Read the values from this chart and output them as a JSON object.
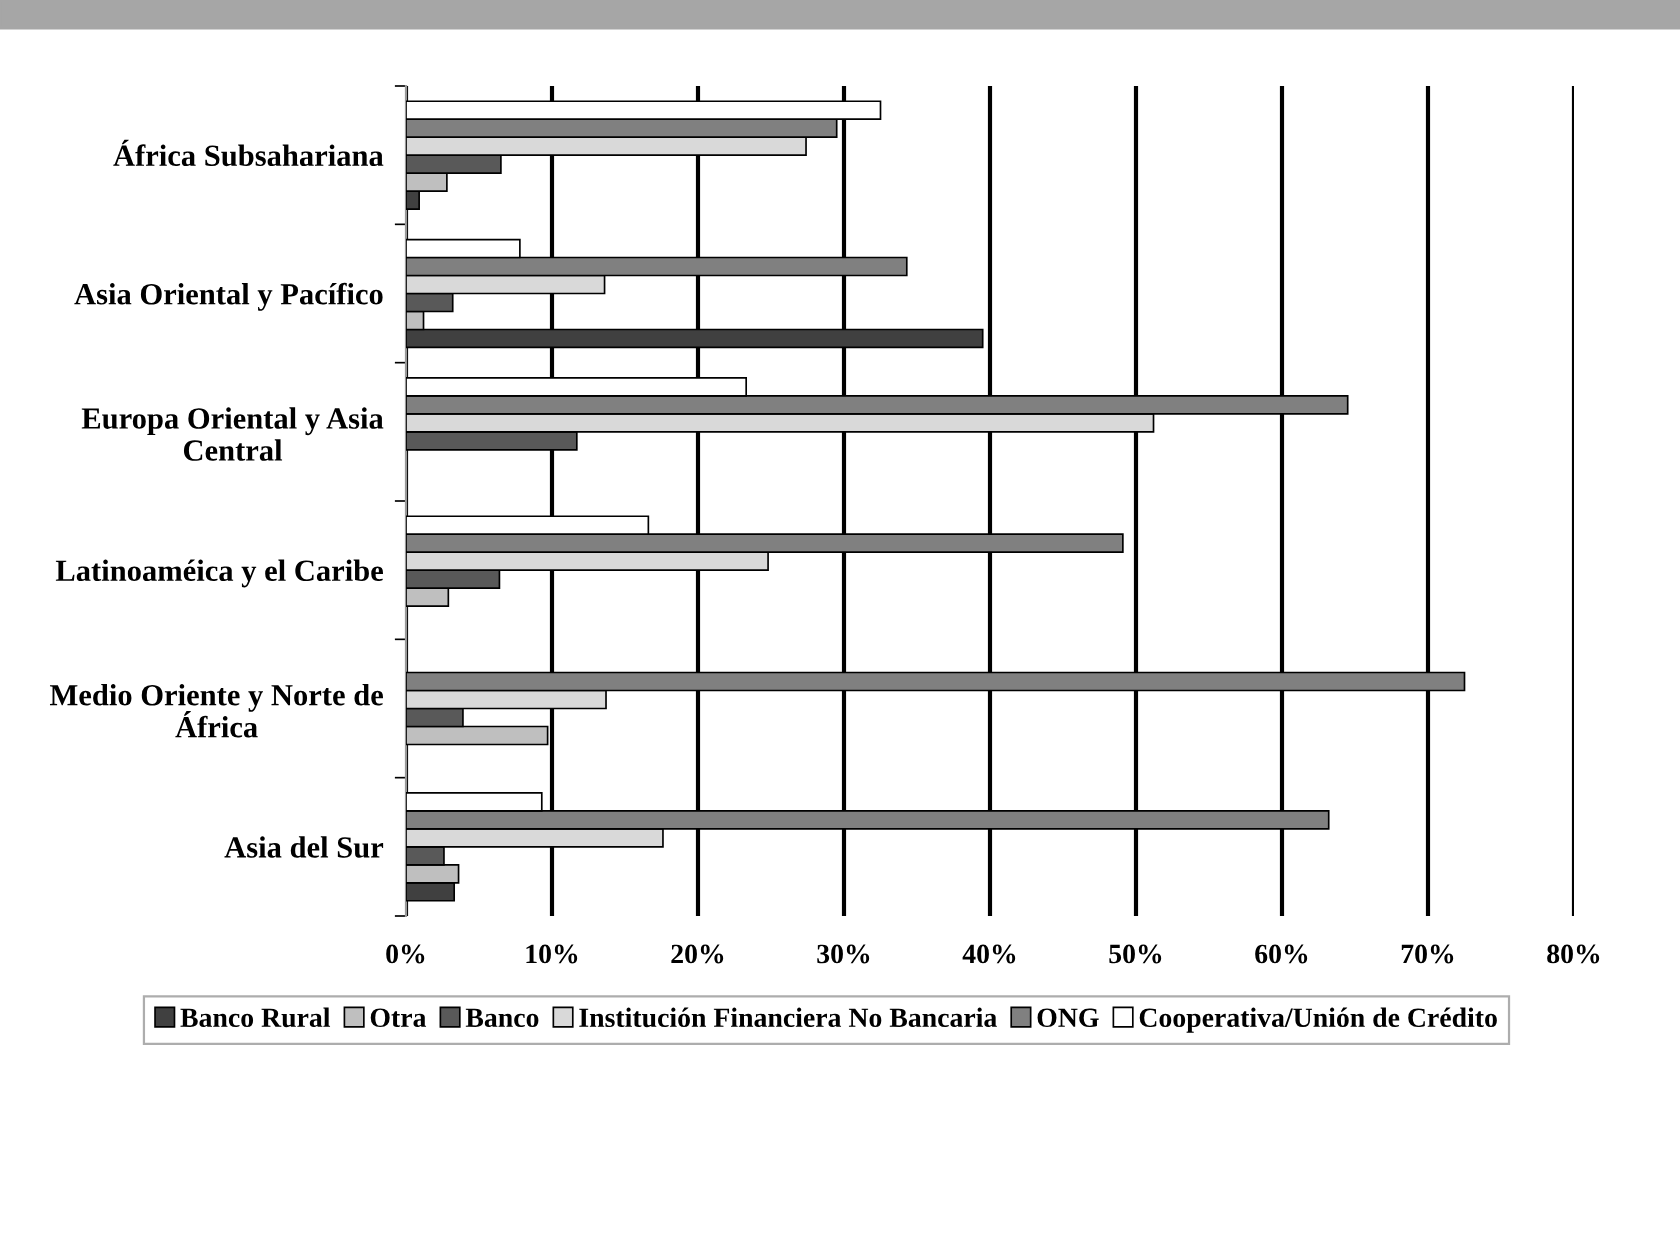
{
  "chart_data": {
    "type": "bar",
    "orientation": "horizontal",
    "categories": [
      "África Subsahariana",
      "Asia Oriental y Pacífico",
      "Europa Oriental y Asia Central",
      "Latinoaméica y el Caribe",
      "Medio Oriente y Norte de África",
      "Asia del Sur"
    ],
    "series": [
      {
        "name": "Banco Rural",
        "color": "#404040",
        "values": [
          0.9,
          39.5,
          null,
          null,
          null,
          3.3
        ]
      },
      {
        "name": "Otra",
        "color": "#bfbfbf",
        "values": [
          2.8,
          1.2,
          null,
          2.9,
          9.7,
          3.6
        ]
      },
      {
        "name": "Banco",
        "color": "#595959",
        "values": [
          6.5,
          3.2,
          11.7,
          6.4,
          3.9,
          2.6
        ]
      },
      {
        "name": "Institución Financiera No Bancaria",
        "color": "#d9d9d9",
        "values": [
          27.4,
          13.6,
          51.2,
          24.8,
          13.7,
          17.6
        ]
      },
      {
        "name": "ONG",
        "color": "#808080",
        "values": [
          29.5,
          34.3,
          64.5,
          49.1,
          72.5,
          63.2
        ]
      },
      {
        "name": "Cooperativa/Unión de Crédito",
        "color": "#ffffff",
        "values": [
          32.5,
          7.8,
          23.3,
          16.6,
          null,
          9.3
        ]
      }
    ],
    "xlim": [
      0,
      80
    ],
    "xticks": [
      {
        "value": 0,
        "label": "0%"
      },
      {
        "value": 10,
        "label": "10%"
      },
      {
        "value": 20,
        "label": "20%"
      },
      {
        "value": 30,
        "label": "30%"
      },
      {
        "value": 40,
        "label": "40%"
      },
      {
        "value": 50,
        "label": "50%"
      },
      {
        "value": 60,
        "label": "60%"
      },
      {
        "value": 70,
        "label": "70%"
      },
      {
        "value": 80,
        "label": "80%"
      }
    ],
    "grid": "x",
    "legend": "bottom"
  }
}
